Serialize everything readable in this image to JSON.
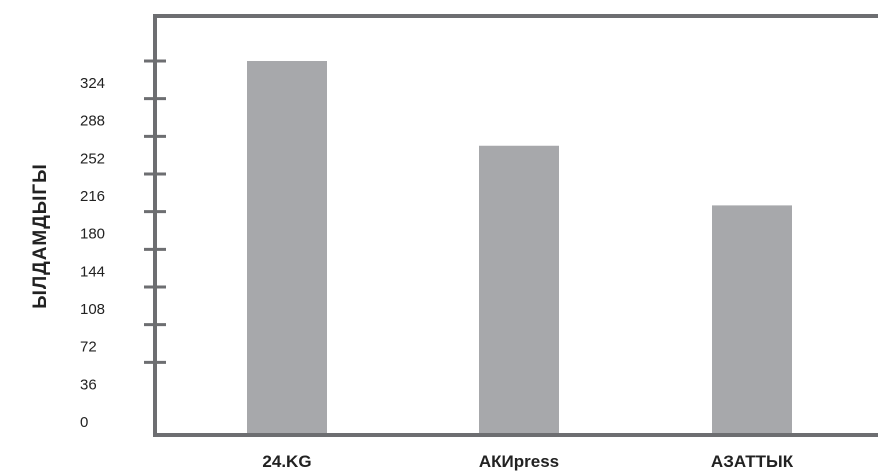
{
  "chart_data": {
    "type": "bar",
    "title": "",
    "xlabel": "",
    "ylabel": "ЫЛДАМДЫГЫ",
    "categories": [
      "24.KG",
      "АКИpress",
      "АЗАТТЫК"
    ],
    "values": [
      324,
      243,
      186
    ],
    "ylim": [
      0,
      360
    ],
    "yticks": [
      0,
      36,
      72,
      108,
      144,
      180,
      216,
      252,
      288,
      324
    ],
    "grid": false,
    "legend": "none",
    "colors": {
      "bar": "#a7a8ab",
      "axis": "#6d6e71",
      "text": "#222222"
    }
  }
}
